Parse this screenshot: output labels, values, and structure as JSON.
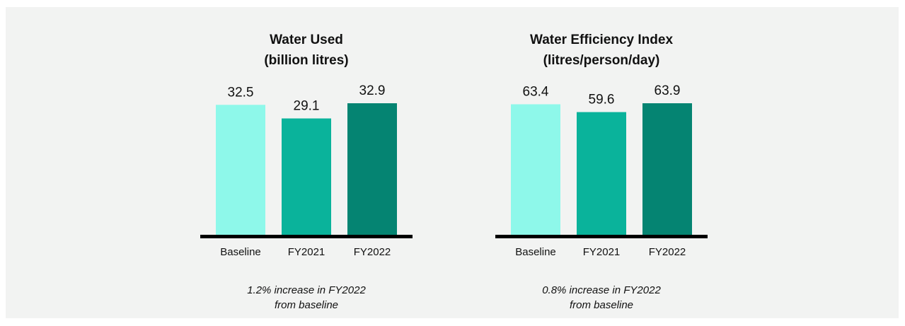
{
  "chart_data": [
    {
      "type": "bar",
      "title": "Water Used",
      "subtitle": "(billion litres)",
      "categories": [
        "Baseline",
        "FY2021",
        "FY2022"
      ],
      "values": [
        32.5,
        29.1,
        32.9
      ],
      "colors": [
        "#8ef8ea",
        "#0ab39b",
        "#058472"
      ],
      "annotation": [
        "1.2% increase in FY2022",
        "from baseline"
      ]
    },
    {
      "type": "bar",
      "title": "Water Efficiency Index",
      "subtitle": "(litres/person/day)",
      "categories": [
        "Baseline",
        "FY2021",
        "FY2022"
      ],
      "values": [
        63.4,
        59.6,
        63.9
      ],
      "colors": [
        "#8ef8ea",
        "#0ab39b",
        "#058472"
      ],
      "annotation": [
        "0.8% increase in FY2022",
        "from baseline"
      ]
    }
  ]
}
